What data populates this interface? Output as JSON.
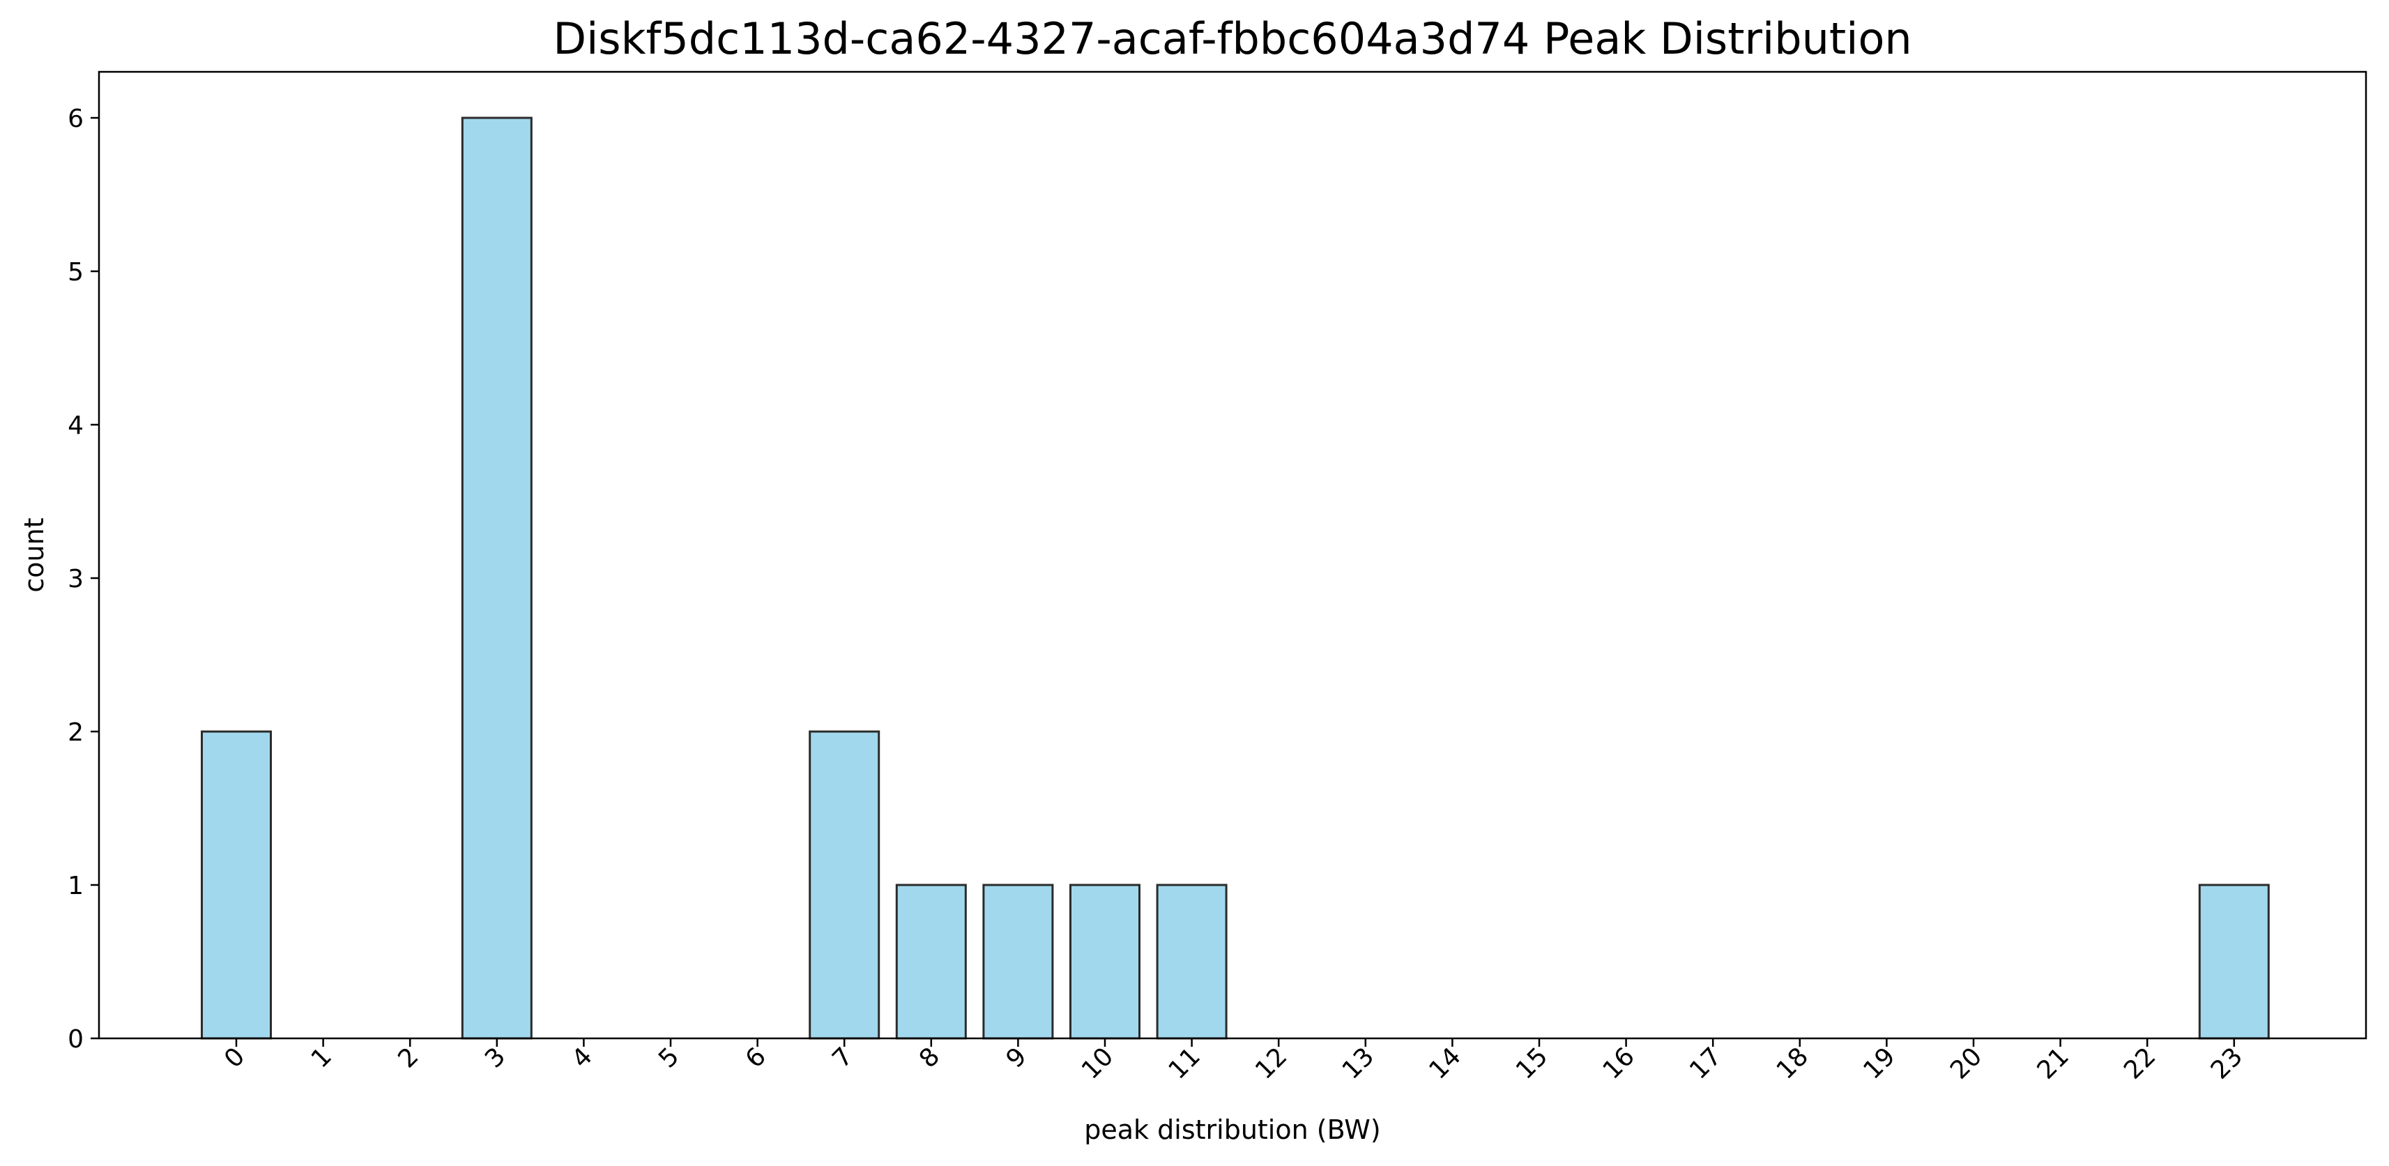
{
  "chart_data": {
    "type": "bar",
    "title": "Diskf5dc113d-ca62-4327-acaf-fbbc604a3d74 Peak Distribution",
    "xlabel": "peak distribution (BW)",
    "ylabel": "count",
    "categories": [
      "0",
      "1",
      "2",
      "3",
      "4",
      "5",
      "6",
      "7",
      "8",
      "9",
      "10",
      "11",
      "12",
      "13",
      "14",
      "15",
      "16",
      "17",
      "18",
      "19",
      "20",
      "21",
      "22",
      "23"
    ],
    "values": [
      2,
      0,
      0,
      6,
      0,
      0,
      0,
      2,
      1,
      1,
      1,
      1,
      0,
      0,
      0,
      0,
      0,
      0,
      0,
      0,
      0,
      0,
      0,
      1
    ],
    "ylim": [
      0,
      6.3
    ],
    "yticks": [
      "0",
      "1",
      "2",
      "3",
      "4",
      "5",
      "6"
    ],
    "grid": false,
    "legend": "none",
    "colors": {
      "bar_fill": "#a1d8ee",
      "bar_edge": "#2b2b2b",
      "axis": "#000000"
    }
  }
}
